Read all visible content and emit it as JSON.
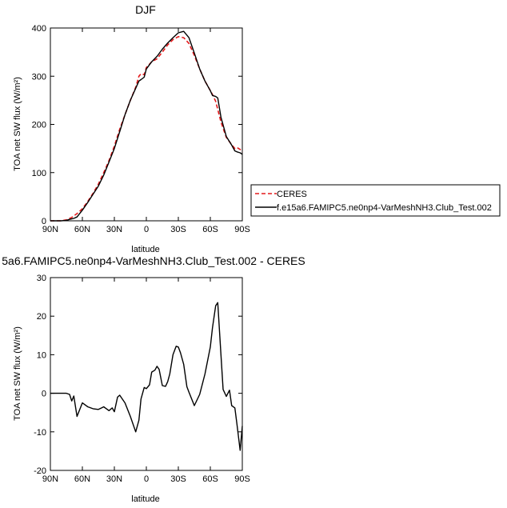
{
  "chart_data": [
    {
      "type": "line",
      "title": "DJF",
      "xlabel": "latitude",
      "ylabel": "TOA net SW flux (W/m²)",
      "xlim": [
        90,
        -90
      ],
      "ylim": [
        0,
        400
      ],
      "xticks": [
        90,
        60,
        30,
        0,
        -30,
        -60,
        -90
      ],
      "xtick_labels": [
        "90N",
        "60N",
        "30N",
        "0",
        "30S",
        "60S",
        "90S"
      ],
      "yticks": [
        0,
        100,
        200,
        300,
        400
      ],
      "legend": {
        "placement": "right",
        "entries": [
          "CERES",
          "f.e15a6.FAMIPC5.ne0np4-VarMeshNH3.Club_Test.002"
        ]
      },
      "series": [
        {
          "name": "CERES",
          "style": "dashed",
          "color": "#e41a1c",
          "x": [
            90,
            85,
            80,
            75,
            70,
            65,
            60,
            55,
            50,
            45,
            40,
            35,
            30,
            25,
            20,
            15,
            10,
            7,
            5,
            2,
            0,
            -5,
            -10,
            -15,
            -20,
            -25,
            -30,
            -35,
            -40,
            -45,
            -50,
            -55,
            -60,
            -62,
            -65,
            -70,
            -75,
            -80,
            -83,
            -85,
            -88,
            -90
          ],
          "y": [
            0,
            0,
            0,
            2,
            7,
            15,
            25,
            40,
            57,
            76,
            100,
            125,
            155,
            190,
            220,
            250,
            277,
            300,
            305,
            303,
            318,
            330,
            336,
            350,
            365,
            376,
            382,
            380,
            368,
            343,
            315,
            290,
            270,
            262,
            248,
            205,
            173,
            158,
            150,
            152,
            148,
            143
          ]
        },
        {
          "name": "f.e15a6.FAMIPC5.ne0np4-VarMeshNH3.Club_Test.002",
          "style": "solid",
          "color": "#000000",
          "x": [
            90,
            85,
            80,
            75,
            72,
            70,
            68,
            65,
            60,
            55,
            50,
            45,
            40,
            35,
            30,
            25,
            20,
            15,
            10,
            7,
            5,
            2,
            0,
            -5,
            -10,
            -15,
            -20,
            -25,
            -30,
            -35,
            -40,
            -45,
            -50,
            -55,
            -60,
            -62,
            -65,
            -67,
            -70,
            -75,
            -80,
            -83,
            -85,
            -88,
            -90
          ],
          "y": [
            0,
            0,
            0,
            1,
            3,
            4,
            5,
            8,
            22,
            38,
            55,
            72,
            95,
            122,
            150,
            185,
            220,
            250,
            275,
            290,
            293,
            298,
            315,
            330,
            341,
            356,
            369,
            380,
            390,
            393,
            380,
            348,
            315,
            290,
            270,
            260,
            258,
            255,
            215,
            175,
            157,
            145,
            143,
            141,
            138
          ]
        }
      ]
    },
    {
      "type": "line",
      "title": "5a6.FAMIPC5.ne0np4-VarMeshNH3.Club_Test.002 - CERES",
      "xlabel": "latitude",
      "ylabel": "TOA net SW flux (W/m²)",
      "xlim": [
        90,
        -90
      ],
      "ylim": [
        -20,
        30
      ],
      "xticks": [
        90,
        60,
        30,
        0,
        -30,
        -60,
        -90
      ],
      "xtick_labels": [
        "90N",
        "60N",
        "30N",
        "0",
        "30S",
        "60S",
        "90S"
      ],
      "yticks": [
        -20,
        -10,
        0,
        10,
        20,
        30
      ],
      "series": [
        {
          "style": "solid",
          "color": "#000000",
          "x": [
            90,
            85,
            80,
            75,
            72,
            70,
            68,
            65,
            60,
            55,
            50,
            45,
            42,
            40,
            35,
            32,
            30,
            27,
            25,
            20,
            15,
            10,
            7,
            5,
            2,
            0,
            -3,
            -5,
            -8,
            -10,
            -12,
            -15,
            -18,
            -20,
            -22,
            -25,
            -28,
            -30,
            -32,
            -35,
            -38,
            -40,
            -45,
            -50,
            -55,
            -60,
            -62,
            -65,
            -67,
            -70,
            -72,
            -75,
            -78,
            -80,
            -83,
            -85,
            -88,
            -90
          ],
          "y": [
            0,
            0,
            0,
            0,
            -0.3,
            -2,
            -0.7,
            -6,
            -2.5,
            -3.5,
            -4,
            -4.2,
            -3.8,
            -3.5,
            -4.5,
            -3.8,
            -4.8,
            -1,
            -0.5,
            -2.5,
            -6,
            -10,
            -7,
            -1.5,
            1.5,
            1.2,
            2.2,
            5.5,
            6.0,
            7.0,
            6.2,
            2.0,
            1.8,
            3.0,
            5.0,
            10.0,
            12.2,
            12.0,
            10.5,
            7.5,
            1.7,
            0.3,
            -3.2,
            -0.3,
            5.0,
            12.0,
            17.0,
            22.7,
            23.5,
            10.0,
            1.0,
            -0.8,
            0.8,
            -3.2,
            -3.8,
            -8.0,
            -14.8,
            -8.5
          ]
        }
      ]
    }
  ]
}
